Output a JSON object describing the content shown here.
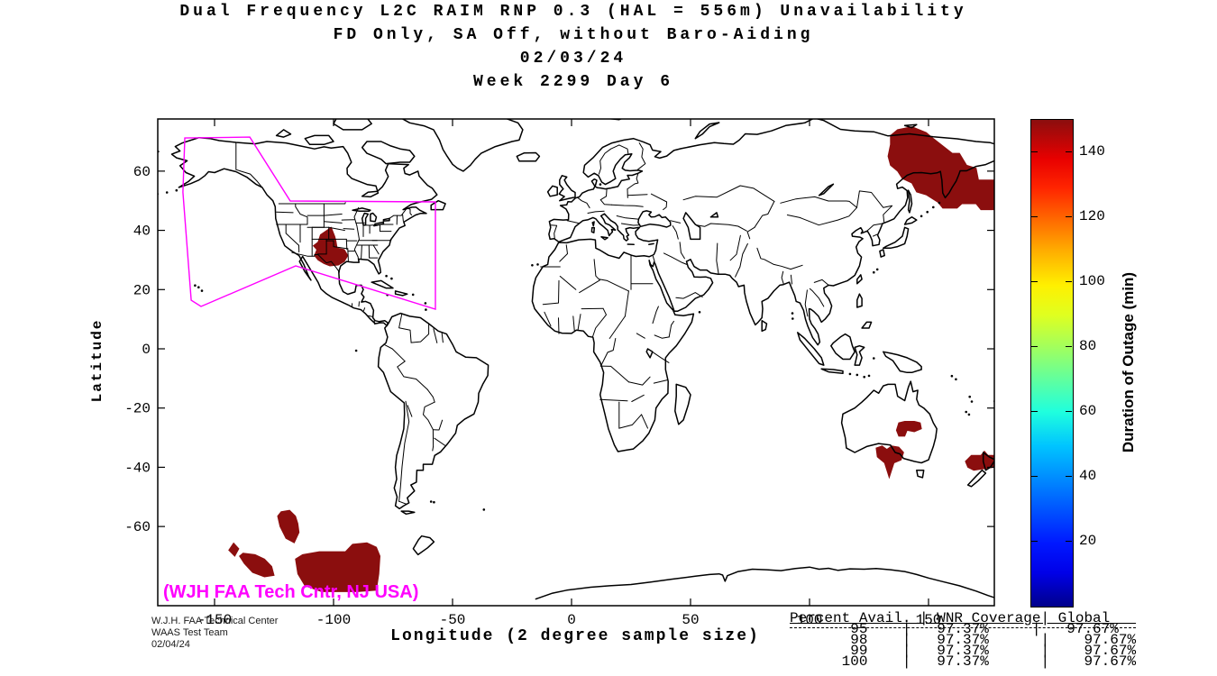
{
  "title_block": {
    "line1": "Dual Frequency L2C RAIM RNP 0.3 (HAL = 556m) Unavailability",
    "line2": "FD Only, SA Off, without Baro-Aiding",
    "line3": "02/03/24",
    "line4": "Week 2299 Day 6"
  },
  "axes": {
    "xlabel": "Longitude (2 degree sample size)",
    "ylabel": "Latitude",
    "xticks": [
      -150,
      -100,
      -50,
      0,
      50,
      100,
      150
    ],
    "yticks": [
      60,
      40,
      20,
      0,
      -20,
      -40,
      -60
    ]
  },
  "colorbar": {
    "label": "Duration of Outage (min)",
    "min": 0,
    "max": 150,
    "ticks": [
      20,
      40,
      60,
      80,
      100,
      120,
      140
    ],
    "colormap": "jet"
  },
  "annotations": {
    "map_credit": "(WJH FAA Tech Cntr, NJ USA)",
    "facility_line1": "W.J.H. FAA Technical Center",
    "facility_line2": "WAAS Test Team",
    "facility_line3": "02/04/24"
  },
  "stats_table": {
    "header_display": "Percent Avail. | WNR Coverage| Global   ",
    "rows_display": [
      "       95    |   97.37%     |   97.67%",
      "       98    |   97.37%      |    97.67%",
      "       99    |   97.37%      |    97.67%",
      "      100    |   97.37%      |    97.67%"
    ],
    "rows": [
      {
        "percent_avail": "95",
        "wnr_coverage": "97.37%",
        "global": "97.67%"
      },
      {
        "percent_avail": "98",
        "wnr_coverage": "97.37%",
        "global": "97.67%"
      },
      {
        "percent_avail": "99",
        "wnr_coverage": "97.37%",
        "global": "97.67%"
      },
      {
        "percent_avail": "100",
        "wnr_coverage": "97.37%",
        "global": "97.67%"
      }
    ]
  },
  "chart_data": {
    "type": "heatmap",
    "title": "Dual Frequency L2C RAIM RNP 0.3 (HAL = 556m) Unavailability",
    "subtitle": "FD Only, SA Off, without Baro-Aiding",
    "date": "02/03/24",
    "week": "Week 2299 Day 6",
    "xlabel": "Longitude (2 degree sample size)",
    "ylabel": "Latitude",
    "xlim": [
      -180,
      180
    ],
    "ylim": [
      -87,
      78
    ],
    "colorbar_label": "Duration of Outage (min)",
    "colorbar_range": [
      0,
      150
    ],
    "colors": {
      "outage": "#8B0E0E",
      "boundary": "#FF00FF",
      "coast": "#000000"
    },
    "outage_value_min": 140,
    "outage_regions": [
      {
        "name": "northeast-asia-okhotsk",
        "polygon": [
          [
            137,
            74
          ],
          [
            143,
            75
          ],
          [
            149,
            73
          ],
          [
            152,
            71
          ],
          [
            160,
            66
          ],
          [
            163,
            66
          ],
          [
            166,
            62
          ],
          [
            170,
            61
          ],
          [
            171,
            57
          ],
          [
            181,
            57
          ],
          [
            181,
            47
          ],
          [
            172,
            47
          ],
          [
            170,
            49
          ],
          [
            164,
            49
          ],
          [
            162,
            47.5
          ],
          [
            156,
            47.5
          ],
          [
            154,
            49.5
          ],
          [
            149,
            52
          ],
          [
            145,
            53
          ],
          [
            143,
            56
          ],
          [
            139,
            57.5
          ],
          [
            137,
            60
          ],
          [
            134,
            62
          ],
          [
            133,
            65
          ],
          [
            134,
            69
          ],
          [
            134,
            72
          ]
        ]
      },
      {
        "name": "us-southwest",
        "polygon": [
          [
            -101,
            41
          ],
          [
            -99.5,
            38
          ],
          [
            -99,
            36.5
          ],
          [
            -98.5,
            34
          ],
          [
            -95.5,
            33.5
          ],
          [
            -94,
            31.5
          ],
          [
            -95.5,
            29.5
          ],
          [
            -98,
            28.3
          ],
          [
            -101.5,
            28
          ],
          [
            -104,
            28.8
          ],
          [
            -106.5,
            30
          ],
          [
            -108,
            31.5
          ],
          [
            -107,
            33.5
          ],
          [
            -108.5,
            34.8
          ],
          [
            -106.5,
            36
          ],
          [
            -105.5,
            38.5
          ]
        ]
      },
      {
        "name": "australia-north",
        "polygon": [
          [
            137.5,
            -25
          ],
          [
            140,
            -24.5
          ],
          [
            144,
            -24.5
          ],
          [
            146.5,
            -25
          ],
          [
            147,
            -27
          ],
          [
            144,
            -28
          ],
          [
            141,
            -27.5
          ],
          [
            140,
            -29.5
          ],
          [
            137.5,
            -29.5
          ],
          [
            136.5,
            -27.5
          ]
        ]
      },
      {
        "name": "australia-south",
        "polygon": [
          [
            128,
            -33.5
          ],
          [
            130.5,
            -32.8
          ],
          [
            132.5,
            -34
          ],
          [
            134.5,
            -32.8
          ],
          [
            137.5,
            -33.2
          ],
          [
            139.5,
            -35
          ],
          [
            138.5,
            -37.5
          ],
          [
            135.5,
            -38.5
          ],
          [
            133.5,
            -43.5
          ],
          [
            131.5,
            -38.5
          ],
          [
            128.5,
            -36.5
          ]
        ]
      },
      {
        "name": "new-zealand-north",
        "polygon": [
          [
            165.5,
            -38
          ],
          [
            168,
            -36
          ],
          [
            172,
            -36
          ],
          [
            173.5,
            -34.6
          ],
          [
            175,
            -36
          ],
          [
            177.7,
            -36
          ],
          [
            177.7,
            -40
          ],
          [
            173,
            -40.5
          ],
          [
            169,
            -41
          ],
          [
            166.5,
            -40
          ]
        ]
      },
      {
        "name": "south-pacific-small",
        "polygon": [
          [
            -142,
            -65.6
          ],
          [
            -139.8,
            -67.5
          ],
          [
            -141.5,
            -70
          ],
          [
            -144,
            -68
          ]
        ]
      },
      {
        "name": "south-pacific-mid",
        "polygon": [
          [
            -138,
            -69
          ],
          [
            -133,
            -69.5
          ],
          [
            -129,
            -71
          ],
          [
            -126,
            -73.5
          ],
          [
            -125,
            -76.5
          ],
          [
            -129,
            -77
          ],
          [
            -134,
            -75.5
          ],
          [
            -137.5,
            -72.5
          ],
          [
            -139.5,
            -70
          ]
        ]
      },
      {
        "name": "south-pacific-upper",
        "polygon": [
          [
            -122,
            -55
          ],
          [
            -118.5,
            -54.5
          ],
          [
            -116,
            -56.5
          ],
          [
            -115,
            -59
          ],
          [
            -114.5,
            -62
          ],
          [
            -116.5,
            -65.5
          ],
          [
            -120,
            -64
          ],
          [
            -122.5,
            -60
          ],
          [
            -123.5,
            -56.5
          ]
        ]
      },
      {
        "name": "south-pacific-large",
        "polygon": [
          [
            -113,
            -69.5
          ],
          [
            -106,
            -68.5
          ],
          [
            -95,
            -68.5
          ],
          [
            -92,
            -66
          ],
          [
            -86,
            -65.5
          ],
          [
            -82,
            -67
          ],
          [
            -80.5,
            -70
          ],
          [
            -81,
            -76
          ],
          [
            -82,
            -81.5
          ],
          [
            -90,
            -82
          ],
          [
            -105,
            -82
          ],
          [
            -112,
            -80
          ],
          [
            -115,
            -76
          ],
          [
            -116,
            -71
          ]
        ]
      }
    ],
    "waas_boundary": [
      [
        -162.5,
        71.2
      ],
      [
        -135.2,
        71.5
      ],
      [
        -118.2,
        49.9
      ],
      [
        -57.2,
        49.6
      ],
      [
        -57.2,
        13.4
      ],
      [
        -115.9,
        28.0
      ],
      [
        -155.7,
        14.3
      ],
      [
        -159.8,
        16.4
      ],
      [
        -163.3,
        52.9
      ]
    ],
    "coverage_stats": {
      "columns": [
        "Percent Avail.",
        "WNR Coverage",
        "Global"
      ],
      "rows": [
        [
          95,
          97.37,
          97.67
        ],
        [
          98,
          97.37,
          97.67
        ],
        [
          99,
          97.37,
          97.67
        ],
        [
          100,
          97.37,
          97.67
        ]
      ]
    }
  }
}
